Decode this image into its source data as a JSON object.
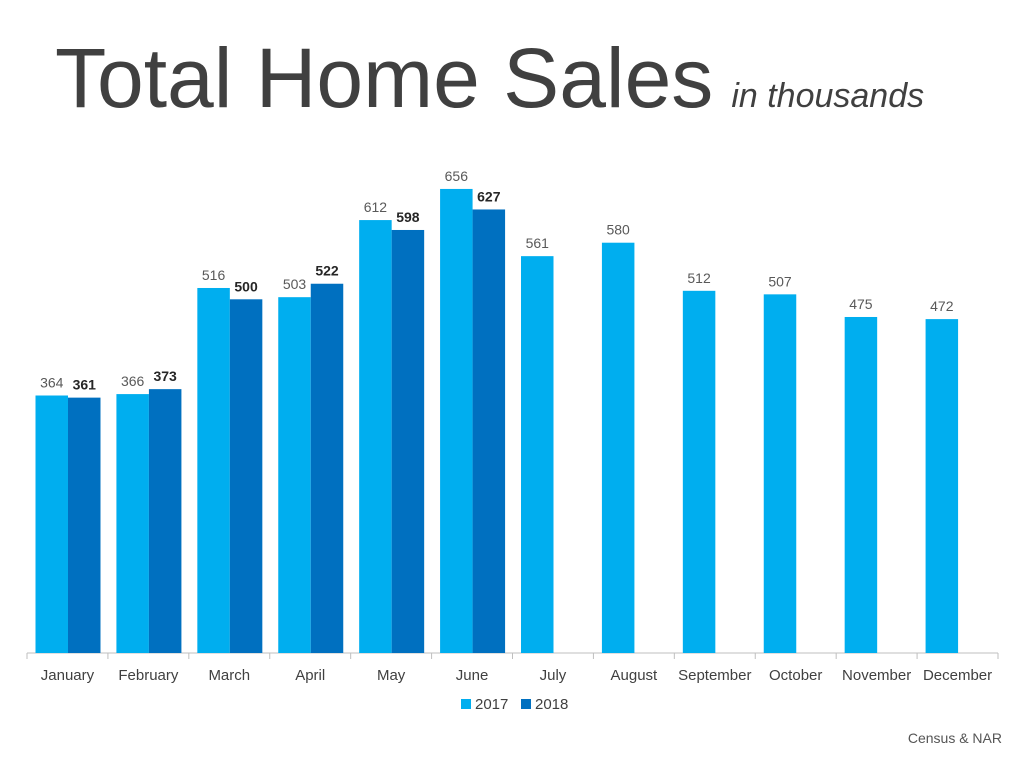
{
  "title": "Total Home Sales",
  "subtitle": "in thousands",
  "source": "Census & NAR",
  "colors": {
    "2017": "#00AEEF",
    "2018": "#0070C0",
    "label2017": "#595959",
    "label2018": "#262626",
    "axis": "#BFBFBF",
    "tick_label": "#404040"
  },
  "chart_data": {
    "type": "bar",
    "title": "Total Home Sales",
    "subtitle": "in thousands",
    "xlabel": "",
    "ylabel": "",
    "ylim": [
      0,
      700
    ],
    "grid": false,
    "legend_position": "bottom-center",
    "categories": [
      "January",
      "February",
      "March",
      "April",
      "May",
      "June",
      "July",
      "August",
      "September",
      "October",
      "November",
      "December"
    ],
    "series": [
      {
        "name": "2017",
        "values": [
          364,
          366,
          516,
          503,
          612,
          656,
          561,
          580,
          512,
          507,
          475,
          472
        ]
      },
      {
        "name": "2018",
        "values": [
          361,
          373,
          500,
          522,
          598,
          627,
          null,
          null,
          null,
          null,
          null,
          null
        ]
      }
    ]
  }
}
